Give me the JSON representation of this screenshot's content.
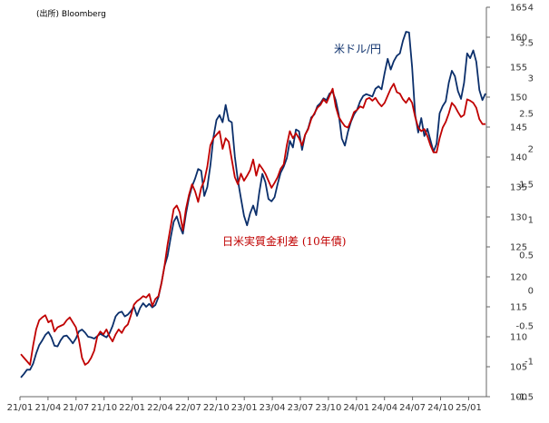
{
  "source": "(出所) Bloomberg",
  "chart_data": {
    "type": "line",
    "x_tick_labels": [
      "21/01",
      "21/04",
      "21/07",
      "21/10",
      "22/01",
      "22/04",
      "22/07",
      "22/10",
      "23/01",
      "23/04",
      "23/07",
      "23/10",
      "24/01",
      "24/04",
      "24/07",
      "24/10",
      "25/01"
    ],
    "y_left": {
      "min": 100,
      "max": 165,
      "step": 5
    },
    "y_right": {
      "min": -1.5,
      "max": 4,
      "step": 0.5
    },
    "annotations": {
      "usd_jpy": "米ドル/円",
      "rate_diff": "日米実質金利差 (10年債)"
    },
    "colors": {
      "usd_jpy": "#0b2f6b",
      "rate_diff": "#c00000"
    },
    "series": [
      {
        "name": "米ドル/円",
        "axis": "left",
        "color": "#0b2f6b",
        "values": [
          103.2,
          103.8,
          104.5,
          104.5,
          105.5,
          107.2,
          108.6,
          109.4,
          110.3,
          110.8,
          109.9,
          108.5,
          108.4,
          109.4,
          110.1,
          110.2,
          109.6,
          108.9,
          109.7,
          110.9,
          111.2,
          110.7,
          110.0,
          109.9,
          109.7,
          110.1,
          110.5,
          110.2,
          109.9,
          110.6,
          111.8,
          113.4,
          114.0,
          114.2,
          113.4,
          113.7,
          114.3,
          115.0,
          113.5,
          114.8,
          115.6,
          115.0,
          115.5,
          114.9,
          115.3,
          116.6,
          119.0,
          121.8,
          123.5,
          126.5,
          129.2,
          130.1,
          128.4,
          127.2,
          130.5,
          133.2,
          135.1,
          136.4,
          138.0,
          137.7,
          133.5,
          135.0,
          138.6,
          143.3,
          146.2,
          147.0,
          145.8,
          148.7,
          146.1,
          145.8,
          140.1,
          136.1,
          133.1,
          130.2,
          128.6,
          130.6,
          131.9,
          130.3,
          134.1,
          137.2,
          135.8,
          133.0,
          132.6,
          133.3,
          135.5,
          137.4,
          138.4,
          139.8,
          142.7,
          141.6,
          144.6,
          144.3,
          141.2,
          143.7,
          144.8,
          146.6,
          147.1,
          148.5,
          149.0,
          149.8,
          149.5,
          150.6,
          150.9,
          149.5,
          147.1,
          143.1,
          141.9,
          144.2,
          145.9,
          147.1,
          147.9,
          149.3,
          150.2,
          150.5,
          150.3,
          150.1,
          151.4,
          151.8,
          151.3,
          154.0,
          156.4,
          154.6,
          156.0,
          156.9,
          157.3,
          159.4,
          160.9,
          160.8,
          155.0,
          147.0,
          144.1,
          146.5,
          143.5,
          144.7,
          142.8,
          140.9,
          142.2,
          147.3,
          148.5,
          149.3,
          152.4,
          154.4,
          153.5,
          151.0,
          149.7,
          152.4,
          157.3,
          156.5,
          157.8,
          155.9,
          151.2,
          149.5,
          150.6
        ]
      },
      {
        "name": "日米実質金利差 (10年債)",
        "axis": "right",
        "color": "#c00000",
        "values": [
          -0.9,
          -0.95,
          -1.0,
          -1.05,
          -0.78,
          -0.55,
          -0.42,
          -0.38,
          -0.35,
          -0.45,
          -0.42,
          -0.58,
          -0.52,
          -0.5,
          -0.48,
          -0.42,
          -0.38,
          -0.45,
          -0.52,
          -0.7,
          -0.95,
          -1.05,
          -1.02,
          -0.95,
          -0.85,
          -0.65,
          -0.58,
          -0.62,
          -0.55,
          -0.65,
          -0.72,
          -0.62,
          -0.55,
          -0.6,
          -0.52,
          -0.48,
          -0.35,
          -0.2,
          -0.15,
          -0.12,
          -0.08,
          -0.1,
          -0.05,
          -0.22,
          -0.12,
          -0.08,
          0.1,
          0.35,
          0.65,
          0.9,
          1.15,
          1.2,
          1.1,
          0.85,
          1.15,
          1.35,
          1.5,
          1.4,
          1.25,
          1.45,
          1.55,
          1.75,
          2.05,
          2.15,
          2.2,
          2.25,
          2.0,
          2.15,
          2.1,
          1.85,
          1.6,
          1.5,
          1.65,
          1.55,
          1.62,
          1.7,
          1.85,
          1.62,
          1.78,
          1.72,
          1.65,
          1.55,
          1.45,
          1.52,
          1.6,
          1.72,
          1.78,
          2.05,
          2.25,
          2.15,
          2.22,
          2.15,
          2.05,
          2.2,
          2.28,
          2.42,
          2.5,
          2.58,
          2.62,
          2.7,
          2.65,
          2.75,
          2.85,
          2.6,
          2.45,
          2.38,
          2.32,
          2.3,
          2.4,
          2.52,
          2.55,
          2.6,
          2.58,
          2.7,
          2.72,
          2.68,
          2.72,
          2.65,
          2.6,
          2.65,
          2.75,
          2.85,
          2.92,
          2.8,
          2.78,
          2.7,
          2.65,
          2.72,
          2.65,
          2.45,
          2.3,
          2.25,
          2.28,
          2.18,
          2.05,
          1.95,
          1.95,
          2.15,
          2.3,
          2.38,
          2.5,
          2.65,
          2.6,
          2.52,
          2.45,
          2.48,
          2.7,
          2.68,
          2.65,
          2.58,
          2.42,
          2.35,
          2.35
        ]
      }
    ]
  }
}
